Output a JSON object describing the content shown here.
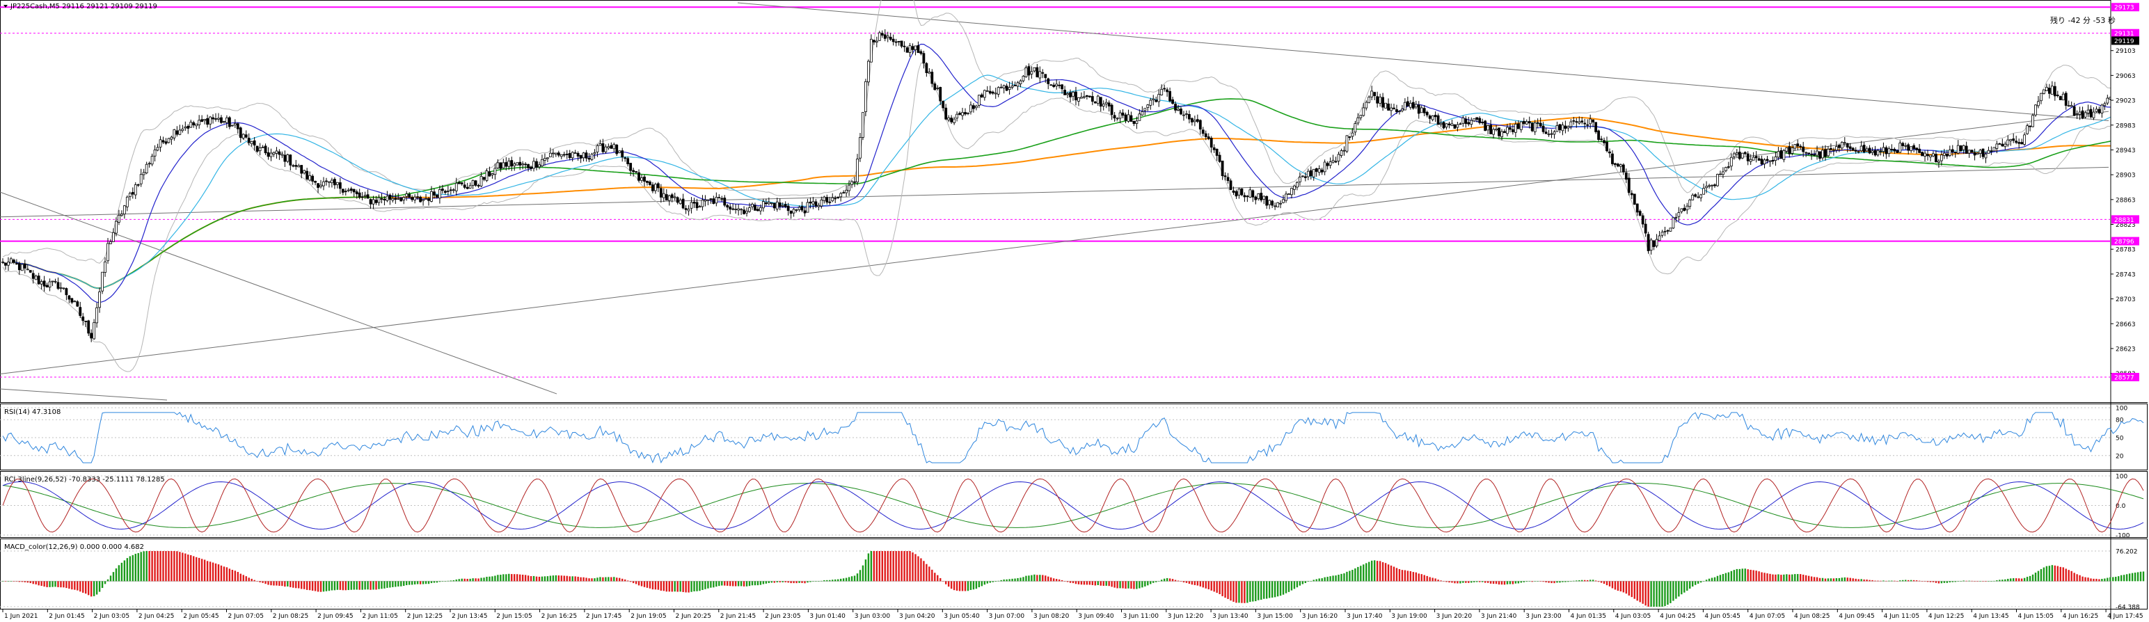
{
  "window": {
    "title": "JP225Cash,M5  29116 29121 29109 29119",
    "countdown": "残り  -42 分  -53 秒"
  },
  "colors": {
    "bull": "#1a9a1a",
    "bear": "#e01a1a",
    "candle": "#000000",
    "ma_fast": "#2222cc",
    "ma_mid": "#33b5e5",
    "ma_slow": "#1aa01a",
    "ma_long": "#ff8c00",
    "bollinger": "#b5b5b5",
    "level": "#ff00ff",
    "trend": "#707070",
    "rsi": "#2e86de",
    "rci_short": "#b22222",
    "rci_mid": "#2222cc",
    "rci_long": "#1a8a1a"
  },
  "axes": {
    "price_ticks": [
      "29103",
      "29063",
      "29023",
      "28983",
      "28943",
      "28903",
      "28863",
      "28823",
      "28783",
      "28743",
      "28703",
      "28663",
      "28623",
      "28583"
    ],
    "price_range": [
      28540,
      29180
    ],
    "level_tags": [
      {
        "label": "29173",
        "value": 29173,
        "thick": true
      },
      {
        "label": "29131",
        "value": 29131,
        "thick": false
      },
      {
        "label": "28831",
        "value": 28831,
        "thick": false
      },
      {
        "label": "28796",
        "value": 28796,
        "thick": true
      },
      {
        "label": "28577",
        "value": 28577,
        "thick": false
      }
    ],
    "price_badge": "29119",
    "time_labels": [
      "1 Jun 2021",
      "2 Jun 01:45",
      "2 Jun 03:05",
      "2 Jun 04:25",
      "2 Jun 05:45",
      "2 Jun 07:05",
      "2 Jun 08:25",
      "2 Jun 09:45",
      "2 Jun 11:05",
      "2 Jun 12:25",
      "2 Jun 13:45",
      "2 Jun 15:05",
      "2 Jun 16:25",
      "2 Jun 17:45",
      "2 Jun 19:05",
      "2 Jun 20:25",
      "2 Jun 21:45",
      "2 Jun 23:05",
      "3 Jun 01:40",
      "3 Jun 03:00",
      "3 Jun 04:20",
      "3 Jun 05:40",
      "3 Jun 07:00",
      "3 Jun 08:20",
      "3 Jun 09:40",
      "3 Jun 11:00",
      "3 Jun 12:20",
      "3 Jun 13:40",
      "3 Jun 15:00",
      "3 Jun 16:20",
      "3 Jun 17:40",
      "3 Jun 19:00",
      "3 Jun 20:20",
      "3 Jun 21:40",
      "3 Jun 23:00",
      "4 Jun 01:35",
      "4 Jun 03:05",
      "4 Jun 04:25",
      "4 Jun 05:45",
      "4 Jun 07:05",
      "4 Jun 08:25",
      "4 Jun 09:45",
      "4 Jun 11:05",
      "4 Jun 12:25",
      "4 Jun 13:45",
      "4 Jun 15:05",
      "4 Jun 16:25",
      "4 Jun 17:45"
    ]
  },
  "chart_data": [
    {
      "type": "candlestick",
      "title": "JP225Cash,M5  29116 29121 29109 29119",
      "ylim": [
        28540,
        29180
      ],
      "legend": "none",
      "anchors": [
        {
          "i": 0,
          "p": 28760
        },
        {
          "i": 20,
          "p": 28725
        },
        {
          "i": 32,
          "p": 28650
        },
        {
          "i": 38,
          "p": 28790
        },
        {
          "i": 55,
          "p": 28950
        },
        {
          "i": 75,
          "p": 29000
        },
        {
          "i": 92,
          "p": 28950
        },
        {
          "i": 120,
          "p": 28880
        },
        {
          "i": 140,
          "p": 28860
        },
        {
          "i": 160,
          "p": 28875
        },
        {
          "i": 185,
          "p": 28920
        },
        {
          "i": 220,
          "p": 28945
        },
        {
          "i": 240,
          "p": 28860
        },
        {
          "i": 280,
          "p": 28850
        },
        {
          "i": 300,
          "p": 28855
        },
        {
          "i": 308,
          "p": 28900
        },
        {
          "i": 314,
          "p": 29120
        },
        {
          "i": 330,
          "p": 29110
        },
        {
          "i": 342,
          "p": 28990
        },
        {
          "i": 370,
          "p": 29070
        },
        {
          "i": 395,
          "p": 29020
        },
        {
          "i": 410,
          "p": 28990
        },
        {
          "i": 420,
          "p": 29040
        },
        {
          "i": 435,
          "p": 28960
        },
        {
          "i": 445,
          "p": 28880
        },
        {
          "i": 458,
          "p": 28855
        },
        {
          "i": 482,
          "p": 28930
        },
        {
          "i": 495,
          "p": 29030
        },
        {
          "i": 520,
          "p": 28990
        },
        {
          "i": 545,
          "p": 28975
        },
        {
          "i": 575,
          "p": 28985
        },
        {
          "i": 585,
          "p": 28910
        },
        {
          "i": 595,
          "p": 28790
        },
        {
          "i": 605,
          "p": 28830
        },
        {
          "i": 625,
          "p": 28925
        },
        {
          "i": 650,
          "p": 28940
        },
        {
          "i": 675,
          "p": 28945
        },
        {
          "i": 700,
          "p": 28935
        },
        {
          "i": 730,
          "p": 28955
        },
        {
          "i": 738,
          "p": 29050
        },
        {
          "i": 750,
          "p": 29000
        },
        {
          "i": 762,
          "p": 29020
        },
        {
          "i": 774,
          "p": 29070
        }
      ],
      "bar_count": 775
    },
    {
      "type": "line",
      "title": "RSI(14) 47.3108",
      "ylim": [
        0,
        100
      ],
      "levels": [
        "100",
        "80",
        "50",
        "20"
      ],
      "series": [
        {
          "name": "RSI(14)",
          "last": 47.3108
        }
      ]
    },
    {
      "type": "line",
      "title": "RCI 3line(9,26,52) -70.8333 -25.1111 78.1285",
      "ylim": [
        -100,
        100
      ],
      "levels": [
        "100",
        "0.0",
        "-100"
      ],
      "series": [
        {
          "name": "RCI 9",
          "last": -70.8333
        },
        {
          "name": "RCI 26",
          "last": -25.1111
        },
        {
          "name": "RCI 52",
          "last": 78.1285
        }
      ]
    },
    {
      "type": "bar",
      "title": "MACD_color(12,26,9) 0.000 0.000 4.682",
      "ylim": [
        -64.388,
        76.202
      ],
      "levels": [
        "76.202",
        "-64.388"
      ],
      "series": [
        {
          "name": "MACD",
          "last": 4.682
        }
      ]
    }
  ],
  "pane_titles": {
    "rsi": "RSI(14) 47.3108",
    "rci": "RCI 3line(9,26,52) -70.8333 -25.1111 78.1285",
    "macd": "MACD_color(12,26,9) 0.000 0.000 4.682"
  },
  "pane_scales": {
    "rsi": [
      "100",
      "80",
      "50",
      "20"
    ],
    "rci": [
      "100",
      "0.0",
      "-100"
    ],
    "macd": [
      "76.202",
      "-64.388"
    ]
  }
}
